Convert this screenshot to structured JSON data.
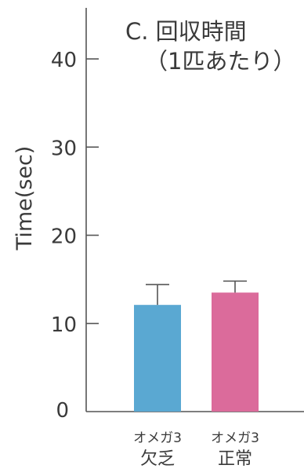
{
  "chart_data": {
    "type": "bar",
    "title_line1": "C. 回収時間",
    "title_line2": "（1匹あたり）",
    "ylabel": "Time(sec)",
    "ylim": [
      0,
      45
    ],
    "yticks": [
      0,
      10,
      20,
      30,
      40
    ],
    "categories": [
      {
        "line1": "オメガ3",
        "line2": "欠乏"
      },
      {
        "line1": "オメガ3",
        "line2": "正常"
      }
    ],
    "values": [
      12.1,
      13.5
    ],
    "errors": [
      2.3,
      1.3
    ],
    "colors": [
      "#5aa8d2",
      "#db6b9b"
    ],
    "axis_color": "#555555"
  }
}
